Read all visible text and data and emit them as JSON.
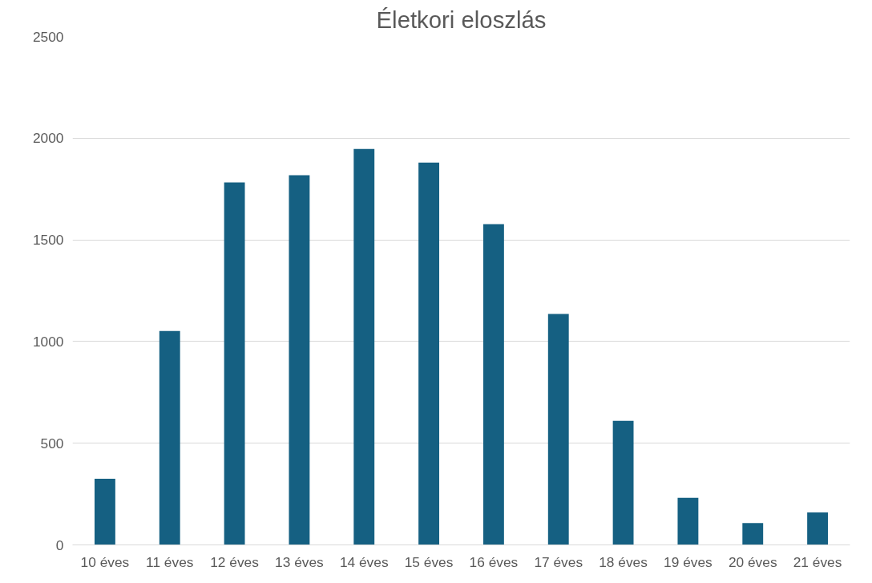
{
  "chart_data": {
    "type": "bar",
    "title": "Életkori eloszlás",
    "categories": [
      "10 éves",
      "11 éves",
      "12 éves",
      "13 éves",
      "14 éves",
      "15 éves",
      "16 éves",
      "17 éves",
      "18 éves",
      "19 éves",
      "20 éves",
      "21 éves"
    ],
    "values": [
      325,
      1052,
      1782,
      1818,
      1947,
      1880,
      1577,
      1136,
      610,
      232,
      107,
      160
    ],
    "color": "#156082",
    "ylim": [
      0,
      2500
    ],
    "yticks": [
      0,
      500,
      1000,
      1500,
      2000,
      2500
    ],
    "grid": "y"
  }
}
